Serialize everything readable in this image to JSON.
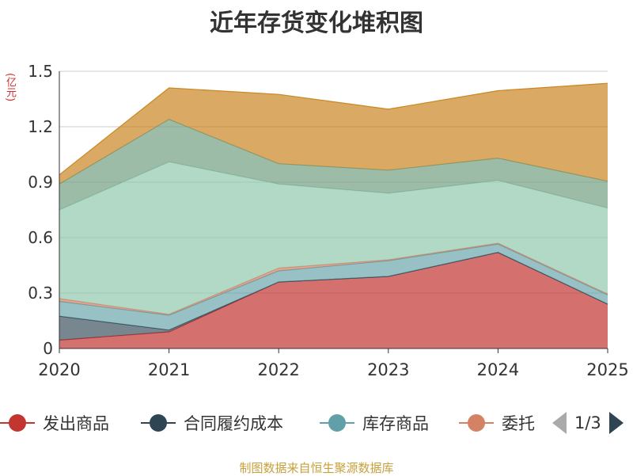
{
  "chart_data": {
    "type": "area",
    "title": "近年存货变化堆积图",
    "unit_label": "(亿元)",
    "x": [
      "2020",
      "2021",
      "2022",
      "2023",
      "2024",
      "2025"
    ],
    "ylim": [
      0,
      1.5
    ],
    "yticks": [
      "0",
      "0.3",
      "0.6",
      "0.9",
      "1.2",
      "1.5"
    ],
    "ytick_values": [
      0,
      0.3,
      0.6,
      0.9,
      1.2,
      1.5
    ],
    "grid": true,
    "series_stack_tops": [
      {
        "values": [
          0.045,
          0.09,
          0.36,
          0.39,
          0.52,
          0.24
        ],
        "color": "#c23531",
        "opacity": 0.7
      },
      {
        "values": [
          0.175,
          0.1,
          0.36,
          0.39,
          0.52,
          0.24
        ],
        "color": "#2f4554",
        "opacity": 0.65
      },
      {
        "values": [
          0.255,
          0.18,
          0.42,
          0.475,
          0.565,
          0.29
        ],
        "color": "#61a0a8",
        "opacity": 0.65
      },
      {
        "values": [
          0.27,
          0.185,
          0.435,
          0.48,
          0.57,
          0.295
        ],
        "color": "#d48265",
        "opacity": 0.7
      },
      {
        "values": [
          0.75,
          1.01,
          0.89,
          0.84,
          0.91,
          0.76
        ],
        "color": "#91c7ae",
        "opacity": 0.7
      },
      {
        "values": [
          0.89,
          1.24,
          1.0,
          0.965,
          1.03,
          0.905
        ],
        "color": "#749f83",
        "opacity": 0.7
      },
      {
        "values": [
          0.94,
          1.41,
          1.375,
          1.295,
          1.395,
          1.435
        ],
        "color": "#ca8622",
        "opacity": 0.7
      }
    ],
    "legend": [
      {
        "name": "发出商品",
        "color": "#c23531"
      },
      {
        "name": "合同履约成本",
        "color": "#2f4554"
      },
      {
        "name": "库存商品",
        "color": "#61a0a8"
      },
      {
        "name": "委托",
        "color": "#d48265"
      }
    ],
    "pager": "1/3"
  },
  "source_text": "制图数据来自恒生聚源数据库"
}
